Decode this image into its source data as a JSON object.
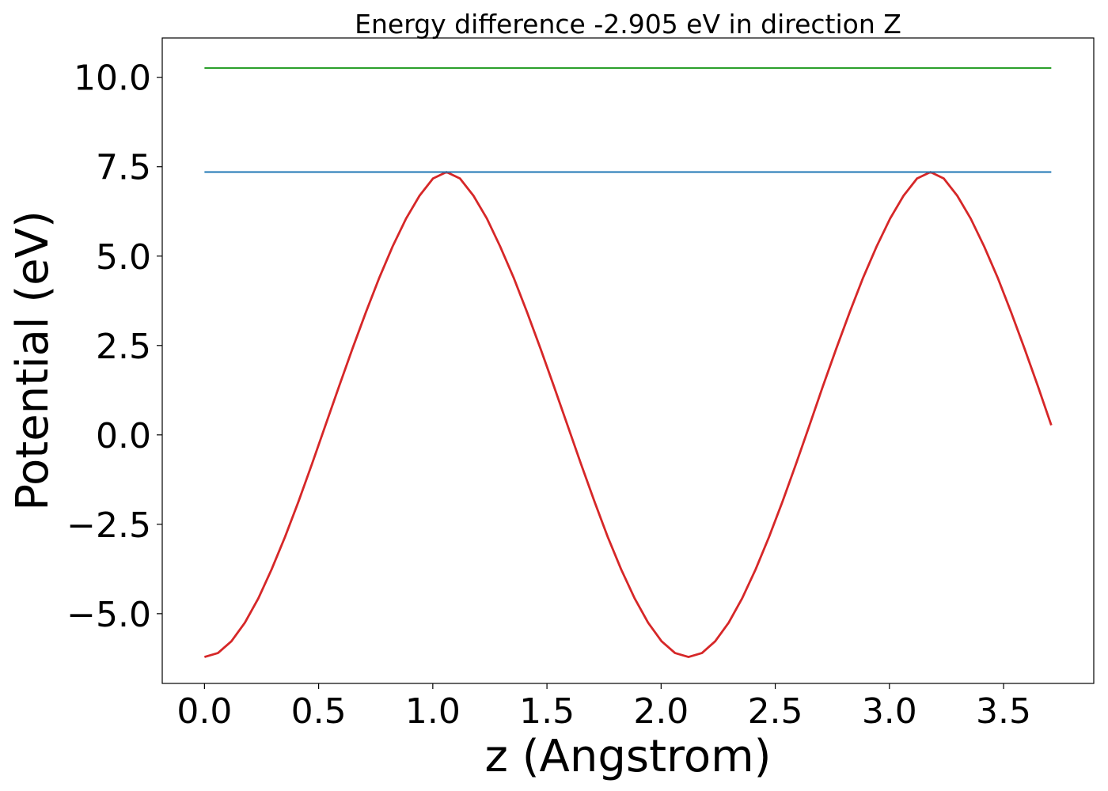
{
  "chart_data": {
    "type": "line",
    "title": "Energy difference -2.905 eV in direction Z",
    "xlabel": "z (Angstrom)",
    "ylabel": "Potential (eV)",
    "xlim": [
      -0.185,
      3.895
    ],
    "ylim": [
      -6.95,
      11.1
    ],
    "xticks": [
      0.0,
      0.5,
      1.0,
      1.5,
      2.0,
      2.5,
      3.0,
      3.5
    ],
    "xtick_labels": [
      "0.0",
      "0.5",
      "1.0",
      "1.5",
      "2.0",
      "2.5",
      "3.0",
      "3.5"
    ],
    "yticks": [
      -5.0,
      -2.5,
      0.0,
      2.5,
      5.0,
      7.5,
      10.0
    ],
    "ytick_labels": [
      "−5.0",
      "−2.5",
      "0.0",
      "2.5",
      "5.0",
      "7.5",
      "10.0"
    ],
    "grid": false,
    "series": [
      {
        "color": "#d62728",
        "x": [
          0.0,
          0.059,
          0.118,
          0.177,
          0.236,
          0.294,
          0.353,
          0.412,
          0.471,
          0.53,
          0.589,
          0.648,
          0.707,
          0.766,
          0.824,
          0.883,
          0.942,
          1.001,
          1.06,
          1.119,
          1.178,
          1.237,
          1.295,
          1.354,
          1.413,
          1.472,
          1.531,
          1.59,
          1.649,
          1.708,
          1.766,
          1.825,
          1.884,
          1.943,
          2.002,
          2.061,
          2.12,
          2.179,
          2.237,
          2.296,
          2.355,
          2.414,
          2.473,
          2.532,
          2.591,
          2.65,
          2.708,
          2.767,
          2.826,
          2.885,
          2.944,
          3.003,
          3.062,
          3.121,
          3.18,
          3.238,
          3.297,
          3.356,
          3.415,
          3.474,
          3.533,
          3.592,
          3.651,
          3.709
        ],
        "y": [
          -6.21,
          -6.1,
          -5.77,
          -5.25,
          -4.57,
          -3.76,
          -2.85,
          -1.86,
          -0.81,
          0.27,
          1.35,
          2.41,
          3.43,
          4.4,
          5.27,
          6.05,
          6.69,
          7.17,
          7.35,
          7.17,
          6.69,
          6.05,
          5.27,
          4.4,
          3.43,
          2.41,
          1.35,
          0.27,
          -0.81,
          -1.86,
          -2.85,
          -3.76,
          -4.57,
          -5.25,
          -5.77,
          -6.1,
          -6.21,
          -6.1,
          -5.77,
          -5.25,
          -4.57,
          -3.76,
          -2.85,
          -1.86,
          -0.81,
          0.27,
          1.35,
          2.41,
          3.43,
          4.4,
          5.27,
          6.05,
          6.69,
          7.17,
          7.35,
          7.17,
          6.69,
          6.05,
          5.27,
          4.4,
          3.43,
          2.41,
          1.35,
          0.27
        ]
      },
      {
        "color": "#1f77b4",
        "x": [
          0.0,
          3.709
        ],
        "y": [
          7.35,
          7.35
        ]
      },
      {
        "color": "#2ca02c",
        "x": [
          0.0,
          3.709
        ],
        "y": [
          10.26,
          10.26
        ]
      }
    ]
  }
}
